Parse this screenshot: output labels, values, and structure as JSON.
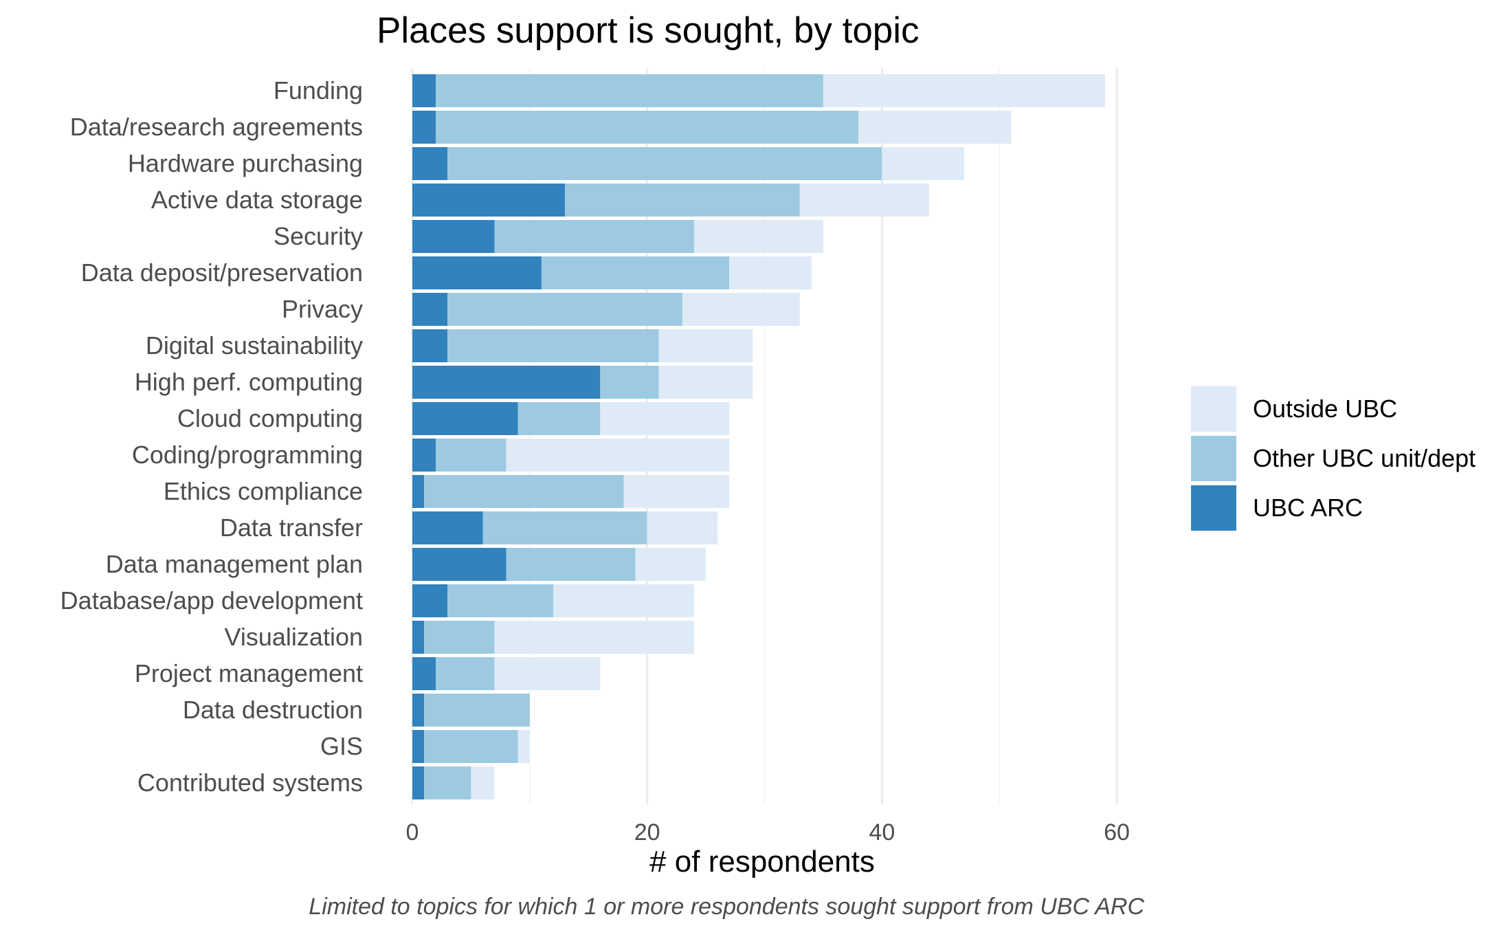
{
  "chart_data": {
    "type": "bar",
    "orientation": "horizontal",
    "stacked": true,
    "title": "Places support is sought, by topic",
    "xlabel": "# of respondents",
    "ylabel": "",
    "caption": "Limited to topics for which 1 or more respondents sought support from UBC ARC",
    "xlim": [
      0,
      66
    ],
    "xticks": [
      0,
      20,
      40,
      60
    ],
    "grid": true,
    "legend_position": "right",
    "categories": [
      "Funding",
      "Data/research agreements",
      "Hardware purchasing",
      "Active data storage",
      "Security",
      "Data deposit/preservation",
      "Privacy",
      "Digital sustainability",
      "High perf. computing",
      "Cloud computing",
      "Coding/programming",
      "Ethics compliance",
      "Data transfer",
      "Data management plan",
      "Database/app development",
      "Visualization",
      "Project management",
      "Data destruction",
      "GIS",
      "Contributed systems"
    ],
    "series": [
      {
        "name": "UBC ARC",
        "color": "#3182bd",
        "values": [
          2,
          2,
          3,
          13,
          7,
          11,
          3,
          3,
          16,
          9,
          2,
          1,
          6,
          8,
          3,
          1,
          2,
          1,
          1,
          1
        ]
      },
      {
        "name": "Other UBC unit/dept",
        "color": "#9ecae1",
        "values": [
          33,
          36,
          37,
          20,
          17,
          16,
          20,
          18,
          5,
          7,
          6,
          17,
          14,
          11,
          9,
          6,
          5,
          9,
          8,
          4
        ]
      },
      {
        "name": "Outside UBC",
        "color": "#deebf7",
        "values": [
          24,
          13,
          7,
          11,
          11,
          7,
          10,
          8,
          8,
          11,
          19,
          9,
          6,
          6,
          12,
          17,
          9,
          0,
          1,
          2
        ]
      }
    ],
    "legend_order": [
      "Outside UBC",
      "Other UBC unit/dept",
      "UBC ARC"
    ]
  }
}
